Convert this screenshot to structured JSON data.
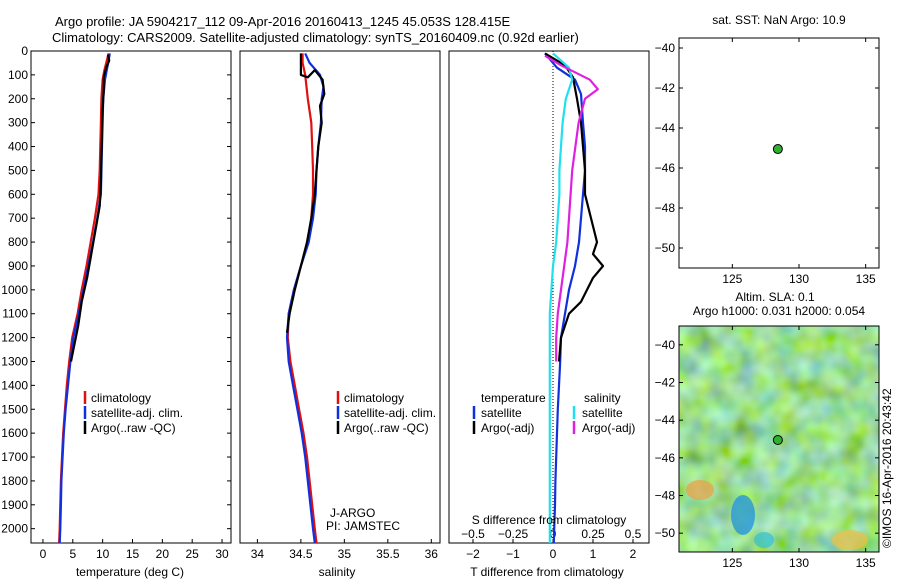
{
  "header": {
    "line1": "Argo profile: JA 5904217_112 09-Apr-2016 20160413_1245 45.053S 128.415E",
    "line2": "Climatology: CARS2009. Satellite-adjusted climatology: synTS_20160409.nc (0.92d earlier)"
  },
  "colors": {
    "climatology": "#e01010",
    "satellite": "#1030e0",
    "argo": "#000000",
    "sal_satellite": "#20e0f0",
    "sal_argo": "#e020e0",
    "float_marker": "#30b030"
  },
  "chart_data": [
    {
      "id": "temperature",
      "type": "line",
      "xlabel": "temperature (deg C)",
      "ylabel": "",
      "xlim": [
        -2,
        31.5
      ],
      "ylim": [
        2060,
        0
      ],
      "xticks": [
        0,
        5,
        10,
        15,
        20,
        25,
        30
      ],
      "xticklabels": [
        "0",
        "5",
        "10",
        "15",
        "20",
        "25",
        "30"
      ],
      "yticks": [
        0,
        100,
        200,
        300,
        400,
        500,
        600,
        700,
        800,
        900,
        1000,
        1100,
        1200,
        1300,
        1400,
        1500,
        1600,
        1700,
        1800,
        1900,
        2000
      ],
      "yticklabels": [
        "0",
        "100",
        "200",
        "300",
        "400",
        "500",
        "600",
        "700",
        "800",
        "900",
        "1000",
        "1100",
        "1200",
        "1300",
        "1400",
        "1500",
        "1600",
        "1700",
        "1800",
        "1900",
        "2000"
      ],
      "legend": [
        "climatology",
        "satellite-adj. clim.",
        "Argo(..raw -QC)"
      ],
      "series": [
        {
          "name": "climatology",
          "color": "climatology",
          "points": [
            [
              11.0,
              10
            ],
            [
              10.7,
              40
            ],
            [
              10.3,
              80
            ],
            [
              10.0,
              120
            ],
            [
              9.8,
              200
            ],
            [
              9.7,
              300
            ],
            [
              9.6,
              400
            ],
            [
              9.5,
              500
            ],
            [
              9.3,
              600
            ],
            [
              8.7,
              700
            ],
            [
              8.0,
              800
            ],
            [
              7.3,
              900
            ],
            [
              6.5,
              1000
            ],
            [
              5.8,
              1100
            ],
            [
              4.9,
              1200
            ],
            [
              4.4,
              1300
            ],
            [
              4.0,
              1400
            ],
            [
              3.7,
              1500
            ],
            [
              3.4,
              1600
            ],
            [
              3.2,
              1700
            ],
            [
              3.0,
              1800
            ],
            [
              2.9,
              1900
            ],
            [
              2.8,
              2000
            ],
            [
              2.7,
              2060
            ]
          ]
        },
        {
          "name": "satellite-adj. clim.",
          "color": "satellite",
          "points": [
            [
              11.2,
              10
            ],
            [
              11.0,
              40
            ],
            [
              10.7,
              80
            ],
            [
              10.4,
              120
            ],
            [
              10.1,
              200
            ],
            [
              10.0,
              300
            ],
            [
              9.9,
              400
            ],
            [
              9.8,
              500
            ],
            [
              9.7,
              600
            ],
            [
              9.1,
              700
            ],
            [
              8.4,
              800
            ],
            [
              7.6,
              900
            ],
            [
              6.8,
              1000
            ],
            [
              6.0,
              1100
            ],
            [
              5.1,
              1200
            ],
            [
              4.6,
              1300
            ],
            [
              4.2,
              1400
            ],
            [
              3.8,
              1500
            ],
            [
              3.5,
              1600
            ],
            [
              3.3,
              1700
            ],
            [
              3.1,
              1800
            ],
            [
              3.0,
              1900
            ],
            [
              2.9,
              2000
            ],
            [
              2.8,
              2060
            ]
          ]
        },
        {
          "name": "Argo(..raw -QC)",
          "color": "argo",
          "points": [
            [
              10.9,
              15
            ],
            [
              11.1,
              40
            ],
            [
              10.6,
              70
            ],
            [
              10.2,
              110
            ],
            [
              10.2,
              160
            ],
            [
              10.0,
              250
            ],
            [
              9.9,
              350
            ],
            [
              9.8,
              450
            ],
            [
              9.7,
              550
            ],
            [
              9.5,
              650
            ],
            [
              8.8,
              750
            ],
            [
              8.1,
              850
            ],
            [
              7.4,
              950
            ],
            [
              6.5,
              1050
            ],
            [
              5.9,
              1150
            ],
            [
              5.1,
              1250
            ],
            [
              4.7,
              1300
            ]
          ]
        }
      ]
    },
    {
      "id": "salinity",
      "type": "line",
      "xlabel": "salinity",
      "xlim": [
        33.8,
        36.1
      ],
      "ylim": [
        2060,
        0
      ],
      "xticks": [
        34,
        34.5,
        35,
        35.5,
        36
      ],
      "xticklabels": [
        "34",
        "34.5",
        "35",
        "35.5",
        "36"
      ],
      "legend": [
        "climatology",
        "satellite-adj. clim.",
        "Argo(..raw -QC)"
      ],
      "annotation": [
        "J-ARGO",
        "PI: JAMSTEC"
      ],
      "series": [
        {
          "name": "climatology",
          "color": "climatology",
          "points": [
            [
              34.52,
              10
            ],
            [
              34.52,
              50
            ],
            [
              34.55,
              100
            ],
            [
              34.58,
              200
            ],
            [
              34.62,
              300
            ],
            [
              34.63,
              400
            ],
            [
              34.64,
              500
            ],
            [
              34.64,
              600
            ],
            [
              34.62,
              700
            ],
            [
              34.58,
              800
            ],
            [
              34.5,
              900
            ],
            [
              34.42,
              1000
            ],
            [
              34.36,
              1100
            ],
            [
              34.35,
              1200
            ],
            [
              34.38,
              1300
            ],
            [
              34.43,
              1400
            ],
            [
              34.48,
              1500
            ],
            [
              34.53,
              1600
            ],
            [
              34.57,
              1700
            ],
            [
              34.6,
              1800
            ],
            [
              34.63,
              1900
            ],
            [
              34.66,
              2000
            ],
            [
              34.68,
              2060
            ]
          ]
        },
        {
          "name": "satellite-adj. clim.",
          "color": "satellite",
          "points": [
            [
              34.55,
              10
            ],
            [
              34.6,
              50
            ],
            [
              34.72,
              100
            ],
            [
              34.76,
              150
            ],
            [
              34.74,
              200
            ],
            [
              34.73,
              300
            ],
            [
              34.7,
              400
            ],
            [
              34.68,
              500
            ],
            [
              34.67,
              600
            ],
            [
              34.64,
              700
            ],
            [
              34.59,
              800
            ],
            [
              34.5,
              900
            ],
            [
              34.42,
              1000
            ],
            [
              34.36,
              1100
            ],
            [
              34.34,
              1200
            ],
            [
              34.36,
              1300
            ],
            [
              34.41,
              1400
            ],
            [
              34.46,
              1500
            ],
            [
              34.51,
              1600
            ],
            [
              34.55,
              1700
            ],
            [
              34.58,
              1800
            ],
            [
              34.61,
              1900
            ],
            [
              34.64,
              2000
            ],
            [
              34.66,
              2060
            ]
          ]
        },
        {
          "name": "Argo(..raw -QC)",
          "color": "argo",
          "points": [
            [
              34.5,
              10
            ],
            [
              34.5,
              100
            ],
            [
              34.58,
              110
            ],
            [
              34.66,
              80
            ],
            [
              34.75,
              120
            ],
            [
              34.77,
              180
            ],
            [
              34.72,
              230
            ],
            [
              34.74,
              300
            ],
            [
              34.7,
              400
            ],
            [
              34.68,
              500
            ],
            [
              34.66,
              600
            ],
            [
              34.62,
              700
            ],
            [
              34.57,
              800
            ],
            [
              34.5,
              900
            ],
            [
              34.43,
              1000
            ],
            [
              34.37,
              1100
            ],
            [
              34.34,
              1180
            ]
          ]
        }
      ]
    },
    {
      "id": "difference",
      "type": "line",
      "xlabel": "T difference from climatology",
      "top_label": "S difference from climatology",
      "xlim": [
        -2.6,
        2.4
      ],
      "ylim": [
        2060,
        0
      ],
      "xticks": [
        -2,
        -1,
        0,
        1,
        2
      ],
      "xticklabels": [
        "−2",
        "−1",
        "0",
        "1",
        "2"
      ],
      "sticks": [
        -0.5,
        -0.25,
        0,
        0.25,
        0.5
      ],
      "sticklabels": [
        "−0.5",
        "−0.25",
        "0",
        "0.25",
        "0.5"
      ],
      "sscale": 4,
      "legend_headers": [
        "temperature",
        "salinity"
      ],
      "legend": [
        "satellite",
        "Argo(-adj)",
        "satellite",
        "Argo(-adj)"
      ],
      "series": [
        {
          "name": "temperature satellite",
          "color": "satellite",
          "points": [
            [
              -0.2,
              10
            ],
            [
              0.1,
              70
            ],
            [
              0.55,
              120
            ],
            [
              0.7,
              180
            ],
            [
              0.75,
              300
            ],
            [
              0.8,
              400
            ],
            [
              0.8,
              500
            ],
            [
              0.75,
              600
            ],
            [
              0.7,
              700
            ],
            [
              0.65,
              800
            ],
            [
              0.55,
              900
            ],
            [
              0.4,
              1000
            ],
            [
              0.3,
              1100
            ],
            [
              0.2,
              1200
            ],
            [
              0.18,
              1300
            ],
            [
              0.15,
              1400
            ],
            [
              0.12,
              1500
            ],
            [
              0.1,
              1600
            ],
            [
              0.08,
              1700
            ],
            [
              0.06,
              1800
            ],
            [
              0.05,
              1900
            ],
            [
              0.03,
              2000
            ],
            [
              0.02,
              2060
            ]
          ]
        },
        {
          "name": "temperature Argo(-adj)",
          "color": "argo",
          "points": [
            [
              -0.2,
              10
            ],
            [
              0.3,
              60
            ],
            [
              0.5,
              110
            ],
            [
              0.6,
              200
            ],
            [
              0.7,
              300
            ],
            [
              0.75,
              400
            ],
            [
              0.8,
              500
            ],
            [
              0.8,
              600
            ],
            [
              0.95,
              700
            ],
            [
              1.1,
              800
            ],
            [
              1.0,
              850
            ],
            [
              1.25,
              900
            ],
            [
              1.0,
              950
            ],
            [
              0.7,
              1050
            ],
            [
              0.4,
              1100
            ],
            [
              0.2,
              1200
            ],
            [
              0.15,
              1300
            ]
          ]
        },
        {
          "name": "salinity satellite",
          "color": "sal_satellite",
          "points": [
            [
              0.0,
              10
            ],
            [
              0.1,
              70
            ],
            [
              0.12,
              120
            ],
            [
              0.08,
              200
            ],
            [
              0.06,
              300
            ],
            [
              0.05,
              400
            ],
            [
              0.04,
              500
            ],
            [
              0.04,
              600
            ],
            [
              0.03,
              700
            ],
            [
              0.02,
              800
            ],
            [
              0.0,
              900
            ],
            [
              -0.01,
              1000
            ],
            [
              -0.02,
              1100
            ],
            [
              -0.02,
              1200
            ],
            [
              -0.02,
              1300
            ],
            [
              -0.02,
              1400
            ],
            [
              -0.02,
              1500
            ],
            [
              -0.02,
              1600
            ],
            [
              -0.02,
              1700
            ],
            [
              -0.02,
              1800
            ],
            [
              -0.02,
              1900
            ],
            [
              -0.02,
              2000
            ],
            [
              -0.02,
              2060
            ]
          ]
        },
        {
          "name": "salinity Argo(-adj)",
          "color": "sal_argo",
          "points": [
            [
              -0.05,
              20
            ],
            [
              0.05,
              60
            ],
            [
              0.23,
              120
            ],
            [
              0.28,
              160
            ],
            [
              0.2,
              200
            ],
            [
              0.16,
              300
            ],
            [
              0.14,
              400
            ],
            [
              0.12,
              500
            ],
            [
              0.11,
              600
            ],
            [
              0.1,
              700
            ],
            [
              0.09,
              800
            ],
            [
              0.07,
              900
            ],
            [
              0.05,
              1000
            ],
            [
              0.03,
              1100
            ],
            [
              0.02,
              1200
            ],
            [
              0.02,
              1300
            ]
          ]
        }
      ]
    },
    {
      "id": "sst_map",
      "type": "scatter",
      "title": "sat. SST: NaN Argo: 10.9",
      "xlim": [
        121,
        136
      ],
      "ylim": [
        -51,
        -39.5
      ],
      "xticks": [
        125,
        130,
        135
      ],
      "xticklabels": [
        "125",
        "130",
        "135"
      ],
      "yticks": [
        -40,
        -42,
        -44,
        -46,
        -48,
        -50
      ],
      "yticklabels": [
        "−40",
        "−42",
        "−44",
        "−46",
        "−48",
        "−50"
      ],
      "points": [
        [
          128.415,
          -45.053
        ]
      ]
    },
    {
      "id": "sla_map",
      "type": "heatmap",
      "title_line1": "Altim. SLA: 0.1",
      "title_line2": "Argo h1000: 0.031 h2000: 0.054",
      "side_label": "©IMOS 16-Apr-2016 20:43:42",
      "xlim": [
        121,
        136
      ],
      "ylim": [
        -51,
        -39
      ],
      "xticks": [
        125,
        130,
        135
      ],
      "xticklabels": [
        "125",
        "130",
        "135"
      ],
      "yticks": [
        -40,
        -42,
        -44,
        -46,
        -48,
        -50
      ],
      "yticklabels": [
        "−40",
        "−42",
        "−44",
        "−46",
        "−48",
        "−50"
      ],
      "points": [
        [
          128.415,
          -45.053
        ]
      ]
    }
  ]
}
